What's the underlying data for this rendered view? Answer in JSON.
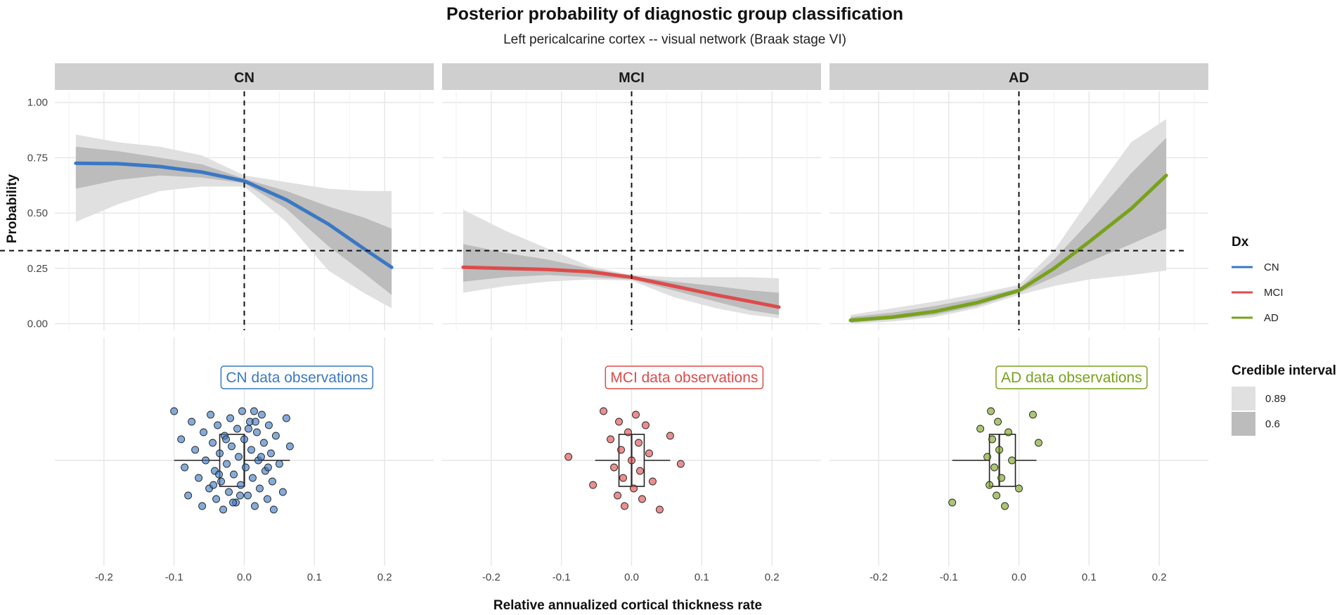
{
  "colors": {
    "CN": "#3a78c3",
    "MCI": "#dd4b4b",
    "AD": "#78a21c",
    "band_wide": "#e0e0e0",
    "band_narrow": "#bcbcbc",
    "strip": "#cfcfcf"
  },
  "chart_data": {
    "type": "line",
    "title": "Posterior probability of diagnostic group classification",
    "subtitle": "Left pericalcarine cortex -- visual network (Braak stage VI)",
    "xlabel": "Relative annualized cortical thickness rate",
    "ylabel": "Probability",
    "xlim": [
      -0.27,
      0.27
    ],
    "ylim": [
      -0.03,
      1.05
    ],
    "x_ticks": [
      -0.2,
      -0.1,
      0.0,
      0.1,
      0.2
    ],
    "x_tick_labels": [
      "-0.2",
      "-0.1",
      "0.0",
      "0.1",
      "0.2"
    ],
    "y_ticks": [
      0.0,
      0.25,
      0.5,
      0.75,
      1.0
    ],
    "y_tick_labels": [
      "0.00",
      "0.25",
      "0.50",
      "0.75",
      "1.00"
    ],
    "reference_lines": {
      "vertical_x": 0.0,
      "horizontal_y": 0.33
    },
    "legend": {
      "dx_title": "Dx",
      "dx_entries": [
        "CN",
        "MCI",
        "AD"
      ],
      "ci_title": "Credible interval",
      "ci_entries": [
        "0.89",
        "0.6"
      ]
    },
    "panels": [
      {
        "name": "CN",
        "x": [
          -0.24,
          -0.18,
          -0.12,
          -0.06,
          0.0,
          0.06,
          0.12,
          0.17,
          0.21
        ],
        "mean": [
          0.725,
          0.723,
          0.71,
          0.685,
          0.645,
          0.56,
          0.45,
          0.34,
          0.255
        ],
        "ci89_lower": [
          0.46,
          0.54,
          0.6,
          0.62,
          0.62,
          0.46,
          0.24,
          0.14,
          0.07
        ],
        "ci89_upper": [
          0.855,
          0.82,
          0.8,
          0.76,
          0.67,
          0.64,
          0.61,
          0.6,
          0.6
        ],
        "ci60_lower": [
          0.61,
          0.65,
          0.67,
          0.66,
          0.635,
          0.52,
          0.35,
          0.23,
          0.13
        ],
        "ci60_upper": [
          0.8,
          0.78,
          0.75,
          0.72,
          0.655,
          0.6,
          0.53,
          0.48,
          0.43
        ],
        "observations_label": "CN data observations",
        "box": {
          "q1": -0.035,
          "median": 0.0,
          "q3": 0.0,
          "whisker_low": -0.1,
          "whisker_high": 0.065
        },
        "points": [
          -0.1,
          -0.09,
          -0.085,
          -0.08,
          -0.075,
          -0.07,
          -0.065,
          -0.06,
          -0.058,
          -0.055,
          -0.05,
          -0.048,
          -0.045,
          -0.042,
          -0.04,
          -0.038,
          -0.035,
          -0.033,
          -0.03,
          -0.028,
          -0.025,
          -0.022,
          -0.02,
          -0.018,
          -0.015,
          -0.012,
          -0.01,
          -0.008,
          -0.005,
          -0.003,
          0.0,
          0.002,
          0.005,
          0.008,
          0.01,
          0.012,
          0.015,
          0.018,
          0.02,
          0.022,
          0.025,
          0.028,
          0.03,
          0.033,
          0.035,
          0.038,
          0.04,
          0.042,
          0.045,
          0.05,
          0.055,
          0.06,
          0.065,
          -0.036,
          -0.016,
          0.006,
          0.024,
          -0.044,
          0.014,
          -0.026,
          0.034,
          -0.006,
          0.016
        ]
      },
      {
        "name": "MCI",
        "x": [
          -0.24,
          -0.18,
          -0.12,
          -0.06,
          0.0,
          0.06,
          0.12,
          0.17,
          0.21
        ],
        "mean": [
          0.255,
          0.25,
          0.245,
          0.235,
          0.21,
          0.17,
          0.13,
          0.1,
          0.075
        ],
        "ci89_lower": [
          0.14,
          0.17,
          0.19,
          0.2,
          0.195,
          0.12,
          0.07,
          0.04,
          0.025
        ],
        "ci89_upper": [
          0.515,
          0.42,
          0.34,
          0.26,
          0.22,
          0.21,
          0.21,
          0.21,
          0.205
        ],
        "ci60_lower": [
          0.19,
          0.21,
          0.22,
          0.21,
          0.2,
          0.15,
          0.1,
          0.06,
          0.04
        ],
        "ci60_upper": [
          0.36,
          0.32,
          0.29,
          0.25,
          0.215,
          0.19,
          0.17,
          0.15,
          0.14
        ],
        "observations_label": "MCI data observations",
        "box": {
          "q1": -0.018,
          "median": 0.0,
          "q3": 0.018,
          "whisker_low": -0.052,
          "whisker_high": 0.055
        },
        "points": [
          -0.09,
          -0.055,
          -0.04,
          -0.03,
          -0.025,
          -0.02,
          -0.018,
          -0.015,
          -0.012,
          -0.01,
          -0.005,
          0.0,
          0.003,
          0.006,
          0.01,
          0.012,
          0.015,
          0.02,
          0.025,
          0.03,
          0.04,
          0.055,
          0.07
        ]
      },
      {
        "name": "AD",
        "x": [
          -0.24,
          -0.18,
          -0.12,
          -0.06,
          0.0,
          0.05,
          0.1,
          0.16,
          0.21
        ],
        "mean": [
          0.015,
          0.03,
          0.055,
          0.095,
          0.15,
          0.25,
          0.37,
          0.52,
          0.67
        ],
        "ci89_lower": [
          0.0,
          0.01,
          0.03,
          0.07,
          0.13,
          0.17,
          0.2,
          0.22,
          0.24
        ],
        "ci89_upper": [
          0.04,
          0.07,
          0.1,
          0.135,
          0.175,
          0.33,
          0.56,
          0.82,
          0.925
        ],
        "ci60_lower": [
          0.005,
          0.02,
          0.04,
          0.08,
          0.14,
          0.21,
          0.28,
          0.36,
          0.43
        ],
        "ci60_upper": [
          0.03,
          0.05,
          0.08,
          0.115,
          0.16,
          0.29,
          0.46,
          0.68,
          0.84
        ],
        "observations_label": "AD data observations",
        "box": {
          "q1": -0.042,
          "median": -0.028,
          "q3": -0.005,
          "whisker_low": -0.095,
          "whisker_high": 0.025
        },
        "points": [
          -0.095,
          -0.055,
          -0.045,
          -0.042,
          -0.04,
          -0.038,
          -0.035,
          -0.032,
          -0.03,
          -0.028,
          -0.025,
          -0.02,
          -0.015,
          -0.01,
          0.0,
          0.02,
          0.028
        ]
      }
    ]
  }
}
